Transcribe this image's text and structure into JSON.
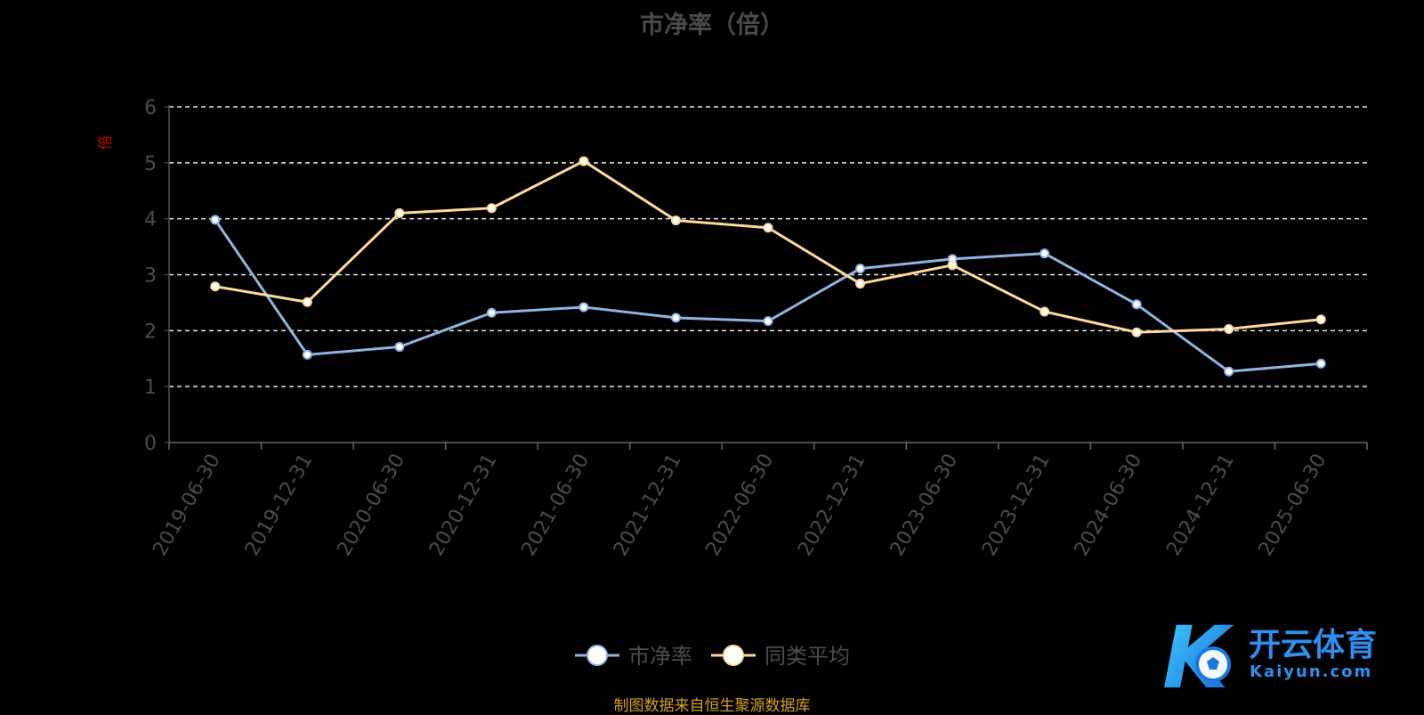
{
  "chart_data": {
    "type": "line",
    "title": "市净率（倍）",
    "ylabel": "倍",
    "xlabel": "",
    "categories": [
      "2019-06-30",
      "2019-12-31",
      "2020-06-30",
      "2020-12-31",
      "2021-06-30",
      "2021-12-31",
      "2022-06-30",
      "2022-12-31",
      "2023-06-30",
      "2023-12-31",
      "2024-06-30",
      "2024-12-31",
      "2025-06-30"
    ],
    "yticks": [
      "0",
      "1",
      "2",
      "3",
      "4",
      "5",
      "6"
    ],
    "ylim": [
      0,
      6
    ],
    "grid": true,
    "legend_position": "bottom-center",
    "series": [
      {
        "name": "市净率",
        "color": "#8fb4e3",
        "values": [
          3.98,
          1.57,
          1.71,
          2.32,
          2.42,
          2.23,
          2.17,
          3.11,
          3.28,
          3.38,
          2.47,
          1.27,
          1.41
        ]
      },
      {
        "name": "同类平均",
        "color": "#ffd99a",
        "values": [
          2.79,
          2.51,
          4.1,
          4.19,
          5.03,
          3.97,
          3.84,
          2.84,
          3.17,
          2.34,
          1.97,
          2.03,
          2.2
        ]
      }
    ]
  },
  "source_note": "制图数据来自恒生聚源数据库",
  "watermark": {
    "brand": "开云体育",
    "domain": "Kaiyun.com",
    "letter": "K"
  }
}
